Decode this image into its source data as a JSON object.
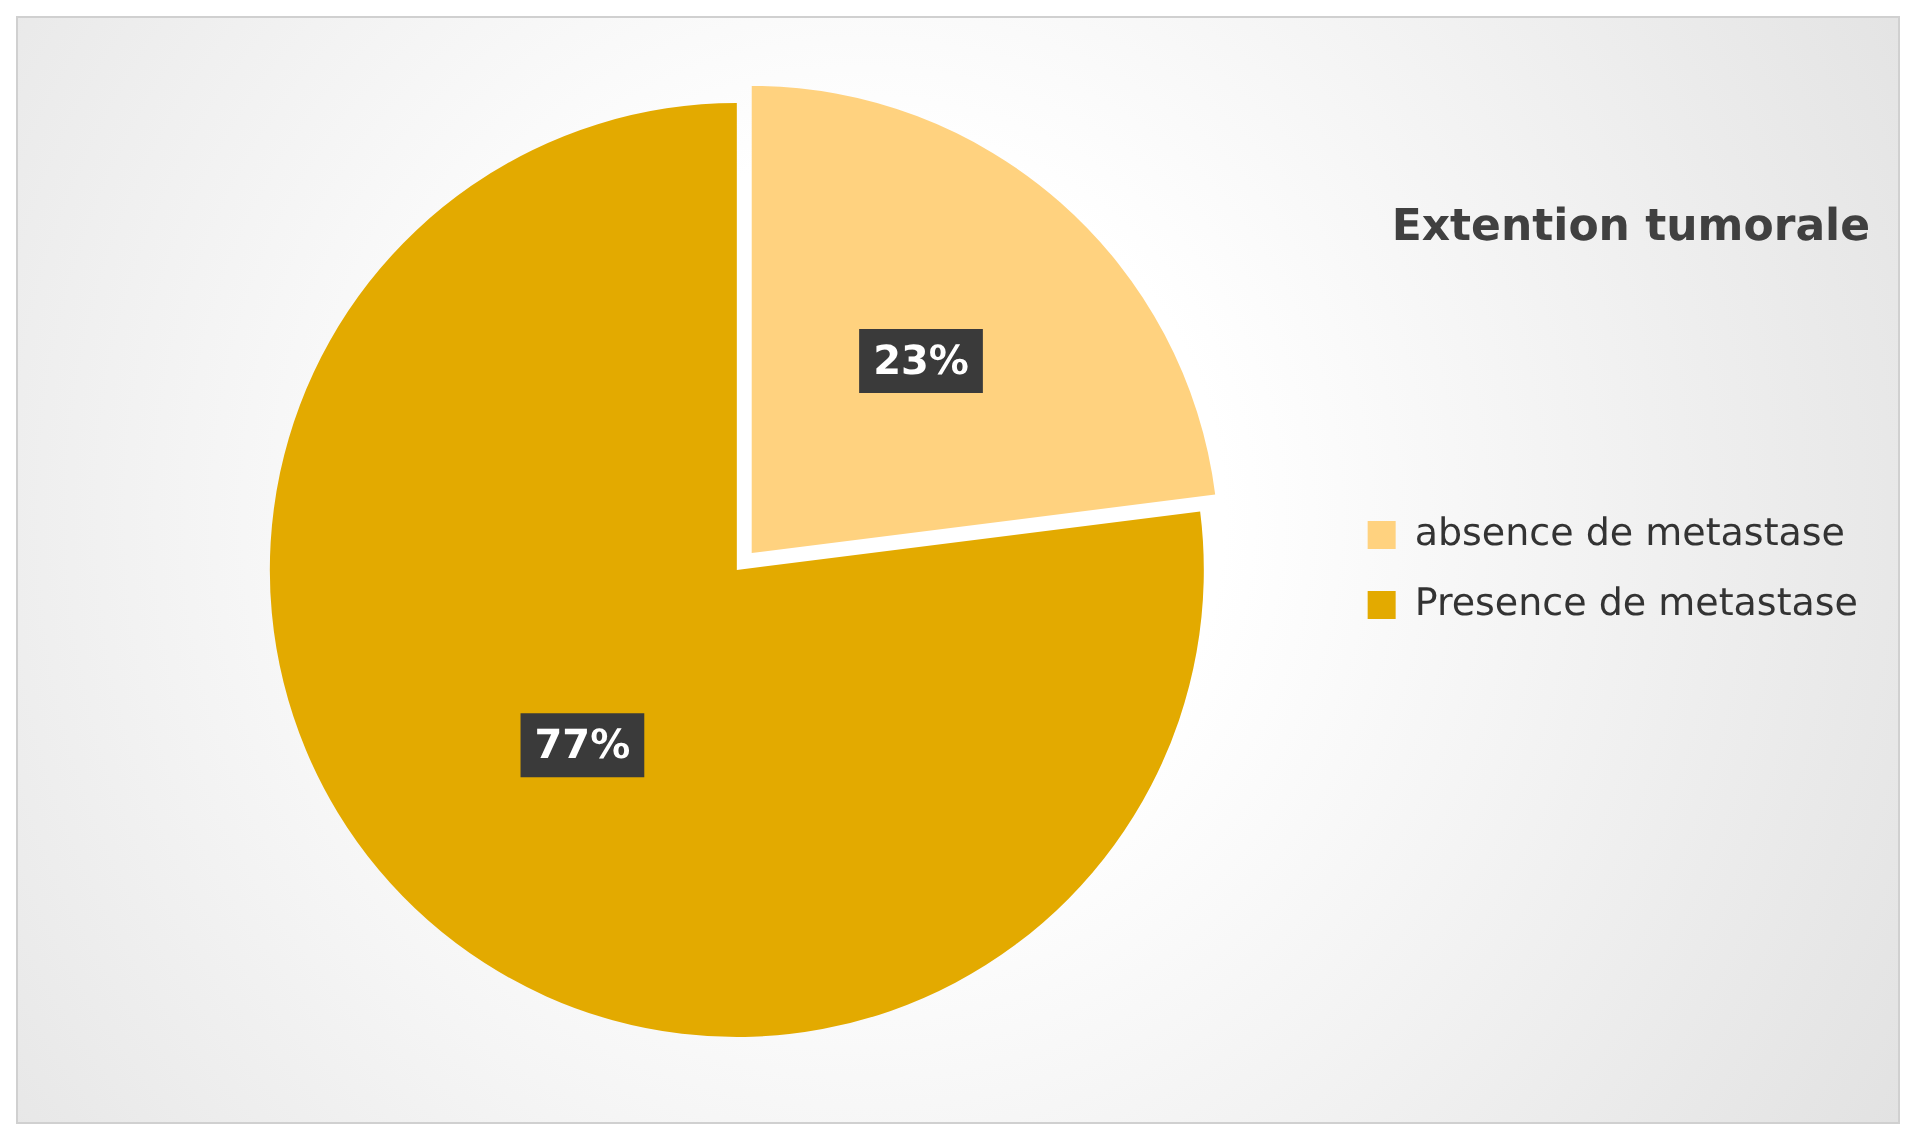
{
  "chart_data": {
    "type": "pie",
    "title": "Extention tumorale",
    "categories": [
      "absence de metastase",
      "Presence de metastase"
    ],
    "values": [
      23,
      77
    ],
    "colors": [
      "#ffd27f",
      "#e3aa00"
    ],
    "value_labels": [
      "23%",
      "77%"
    ],
    "legend": "right"
  }
}
